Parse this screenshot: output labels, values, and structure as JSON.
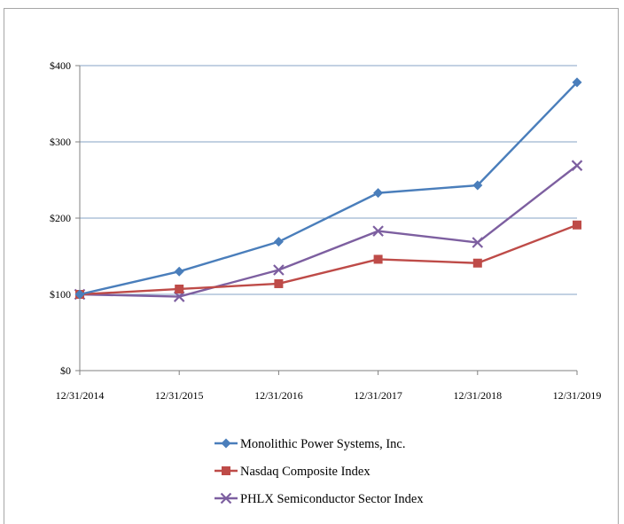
{
  "chart_data": {
    "type": "line",
    "categories": [
      "12/31/2014",
      "12/31/2015",
      "12/31/2016",
      "12/31/2017",
      "12/31/2018",
      "12/31/2019"
    ],
    "y_ticks": [
      "$0",
      "$100",
      "$200",
      "$300",
      "$400"
    ],
    "ylim": [
      0,
      400
    ],
    "grid": "horizontal",
    "legend_position": "bottom",
    "series": [
      {
        "name": "Monolithic Power Systems, Inc.",
        "color": "#4a7ebb",
        "marker": "diamond",
        "values": [
          100,
          130,
          169,
          233,
          243,
          378
        ]
      },
      {
        "name": "Nasdaq Composite Index",
        "color": "#be4b48",
        "marker": "square",
        "values": [
          100,
          107,
          114,
          146,
          141,
          191
        ]
      },
      {
        "name": "PHLX Semiconductor Sector Index",
        "color": "#7d5fa0",
        "marker": "x",
        "values": [
          100,
          97,
          132,
          183,
          168,
          269
        ]
      }
    ]
  }
}
